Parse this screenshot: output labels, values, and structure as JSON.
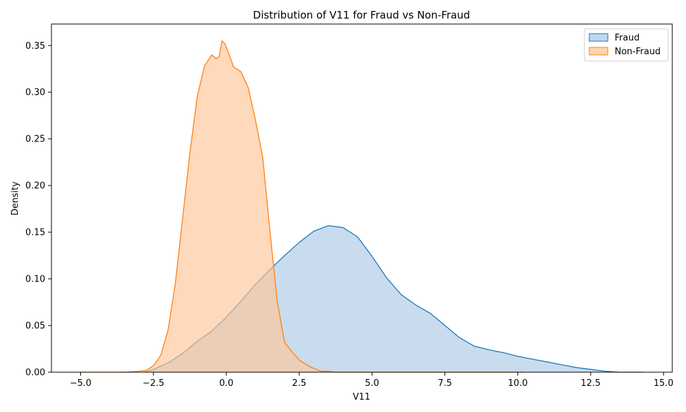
{
  "chart_data": {
    "type": "area",
    "title": "Distribution of V11 for Fraud vs Non-Fraud",
    "xlabel": "V11",
    "ylabel": "Density",
    "xlim": [
      -6.0,
      15.3
    ],
    "ylim": [
      0.0,
      0.373
    ],
    "xticks": [
      -5.0,
      -2.5,
      0.0,
      2.5,
      5.0,
      7.5,
      10.0,
      12.5,
      15.0
    ],
    "xtick_labels": [
      "−5.0",
      "−2.5",
      "0.0",
      "2.5",
      "5.0",
      "7.5",
      "10.0",
      "12.5",
      "15.0"
    ],
    "yticks": [
      0.0,
      0.05,
      0.1,
      0.15,
      0.2,
      0.25,
      0.3,
      0.35
    ],
    "ytick_labels": [
      "0.00",
      "0.05",
      "0.10",
      "0.15",
      "0.20",
      "0.25",
      "0.30",
      "0.35"
    ],
    "grid": false,
    "legend_position": "top-right",
    "series": [
      {
        "name": "Fraud",
        "color": "#1f77b4",
        "fill": "#aac9e5",
        "fill_opacity": 0.65,
        "points": [
          [
            -2.8,
            0.0
          ],
          [
            -2.5,
            0.003
          ],
          [
            -2.0,
            0.01
          ],
          [
            -1.5,
            0.02
          ],
          [
            -1.0,
            0.033
          ],
          [
            -0.5,
            0.044
          ],
          [
            0.0,
            0.059
          ],
          [
            0.5,
            0.076
          ],
          [
            1.0,
            0.094
          ],
          [
            1.5,
            0.11
          ],
          [
            2.0,
            0.125
          ],
          [
            2.5,
            0.139
          ],
          [
            3.0,
            0.151
          ],
          [
            3.5,
            0.157
          ],
          [
            4.0,
            0.155
          ],
          [
            4.5,
            0.145
          ],
          [
            5.0,
            0.124
          ],
          [
            5.5,
            0.101
          ],
          [
            6.0,
            0.083
          ],
          [
            6.5,
            0.072
          ],
          [
            7.0,
            0.063
          ],
          [
            7.5,
            0.05
          ],
          [
            8.0,
            0.037
          ],
          [
            8.5,
            0.028
          ],
          [
            9.0,
            0.024
          ],
          [
            9.5,
            0.021
          ],
          [
            10.0,
            0.017
          ],
          [
            10.5,
            0.014
          ],
          [
            11.0,
            0.011
          ],
          [
            11.5,
            0.008
          ],
          [
            12.0,
            0.005
          ],
          [
            12.5,
            0.003
          ],
          [
            13.0,
            0.001
          ],
          [
            13.5,
            0.0
          ],
          [
            14.3,
            0.0
          ]
        ]
      },
      {
        "name": "Non-Fraud",
        "color": "#ff7f0e",
        "fill": "#ffc596",
        "fill_opacity": 0.65,
        "points": [
          [
            -5.0,
            0.0
          ],
          [
            -4.0,
            0.0
          ],
          [
            -3.5,
            0.0
          ],
          [
            -3.0,
            0.001
          ],
          [
            -2.75,
            0.002
          ],
          [
            -2.5,
            0.007
          ],
          [
            -2.25,
            0.018
          ],
          [
            -2.0,
            0.045
          ],
          [
            -1.75,
            0.095
          ],
          [
            -1.5,
            0.165
          ],
          [
            -1.25,
            0.235
          ],
          [
            -1.0,
            0.295
          ],
          [
            -0.75,
            0.328
          ],
          [
            -0.5,
            0.34
          ],
          [
            -0.35,
            0.336
          ],
          [
            -0.25,
            0.338
          ],
          [
            -0.15,
            0.355
          ],
          [
            -0.05,
            0.352
          ],
          [
            0.1,
            0.34
          ],
          [
            0.25,
            0.327
          ],
          [
            0.5,
            0.322
          ],
          [
            0.75,
            0.305
          ],
          [
            1.0,
            0.27
          ],
          [
            1.25,
            0.23
          ],
          [
            1.5,
            0.15
          ],
          [
            1.75,
            0.075
          ],
          [
            2.0,
            0.032
          ],
          [
            2.25,
            0.022
          ],
          [
            2.5,
            0.013
          ],
          [
            2.75,
            0.008
          ],
          [
            3.0,
            0.004
          ],
          [
            3.25,
            0.001
          ],
          [
            3.5,
            0.001
          ],
          [
            3.75,
            0.0
          ],
          [
            4.5,
            0.0
          ],
          [
            10.2,
            0.0
          ]
        ]
      }
    ]
  }
}
